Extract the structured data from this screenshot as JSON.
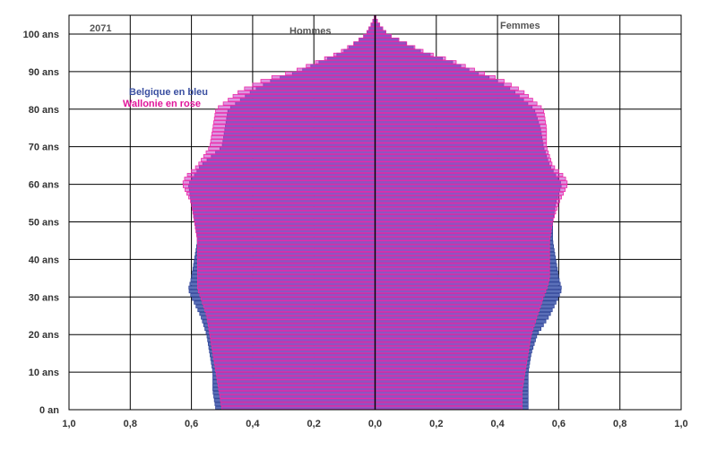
{
  "chart_data": {
    "type": "bar",
    "subtype": "population-pyramid",
    "year_label": "2071",
    "left_label": "Hommes",
    "right_label": "Femmes",
    "legend": [
      {
        "text": "Belgique en bleu",
        "color": "#3a4fa0"
      },
      {
        "text": "Wallonie en rose",
        "color": "#e0159a"
      }
    ],
    "x_tick_labels": [
      "1,0",
      "0,8",
      "0,6",
      "0,4",
      "0,2",
      "0,0",
      "0,2",
      "0,4",
      "0,6",
      "0,8",
      "1,0"
    ],
    "xlim": [
      -1.0,
      1.0
    ],
    "y_tick_labels": [
      "0 an",
      "10 ans",
      "20 ans",
      "30 ans",
      "40 ans",
      "50 ans",
      "60 ans",
      "70 ans",
      "80 ans",
      "90 ans",
      "100 ans"
    ],
    "age_range": [
      0,
      105
    ],
    "series": [
      {
        "name": "Belgique en bleu",
        "color": "#3a4fa0",
        "men_ages": [
          0,
          5,
          10,
          15,
          20,
          25,
          30,
          32,
          35,
          40,
          45,
          50,
          55,
          60,
          65,
          70,
          75,
          80,
          85,
          88,
          90,
          93,
          95,
          98,
          100,
          103,
          105
        ],
        "men_values": [
          0.52,
          0.53,
          0.53,
          0.54,
          0.55,
          0.57,
          0.6,
          0.61,
          0.6,
          0.59,
          0.58,
          0.59,
          0.6,
          0.61,
          0.57,
          0.5,
          0.49,
          0.48,
          0.4,
          0.33,
          0.25,
          0.17,
          0.11,
          0.06,
          0.03,
          0.01,
          0.0
        ],
        "women_ages": [
          0,
          5,
          10,
          15,
          20,
          25,
          30,
          32,
          35,
          40,
          45,
          50,
          55,
          60,
          65,
          70,
          75,
          80,
          85,
          88,
          90,
          93,
          95,
          98,
          100,
          103,
          105
        ],
        "women_values": [
          0.5,
          0.5,
          0.5,
          0.51,
          0.53,
          0.57,
          0.6,
          0.61,
          0.6,
          0.59,
          0.58,
          0.58,
          0.59,
          0.61,
          0.57,
          0.55,
          0.54,
          0.52,
          0.45,
          0.39,
          0.32,
          0.24,
          0.16,
          0.09,
          0.04,
          0.01,
          0.0
        ]
      },
      {
        "name": "Wallonie en rose",
        "color": "#e0159a",
        "men_ages": [
          0,
          5,
          10,
          15,
          20,
          25,
          30,
          32,
          35,
          40,
          45,
          50,
          55,
          60,
          62,
          65,
          70,
          75,
          80,
          85,
          88,
          90,
          93,
          95,
          98,
          100,
          103,
          105
        ],
        "men_values": [
          0.5,
          0.51,
          0.52,
          0.53,
          0.54,
          0.55,
          0.57,
          0.58,
          0.58,
          0.58,
          0.58,
          0.59,
          0.6,
          0.63,
          0.62,
          0.58,
          0.54,
          0.53,
          0.52,
          0.44,
          0.36,
          0.27,
          0.18,
          0.12,
          0.06,
          0.03,
          0.01,
          0.0
        ],
        "women_ages": [
          0,
          5,
          10,
          15,
          20,
          25,
          30,
          32,
          35,
          40,
          45,
          50,
          55,
          60,
          62,
          65,
          70,
          75,
          80,
          85,
          88,
          90,
          93,
          95,
          98,
          100,
          103,
          105
        ],
        "women_values": [
          0.48,
          0.48,
          0.49,
          0.5,
          0.51,
          0.53,
          0.55,
          0.56,
          0.57,
          0.57,
          0.57,
          0.58,
          0.6,
          0.63,
          0.62,
          0.58,
          0.56,
          0.56,
          0.55,
          0.48,
          0.41,
          0.34,
          0.25,
          0.17,
          0.09,
          0.04,
          0.01,
          0.0
        ]
      }
    ]
  }
}
